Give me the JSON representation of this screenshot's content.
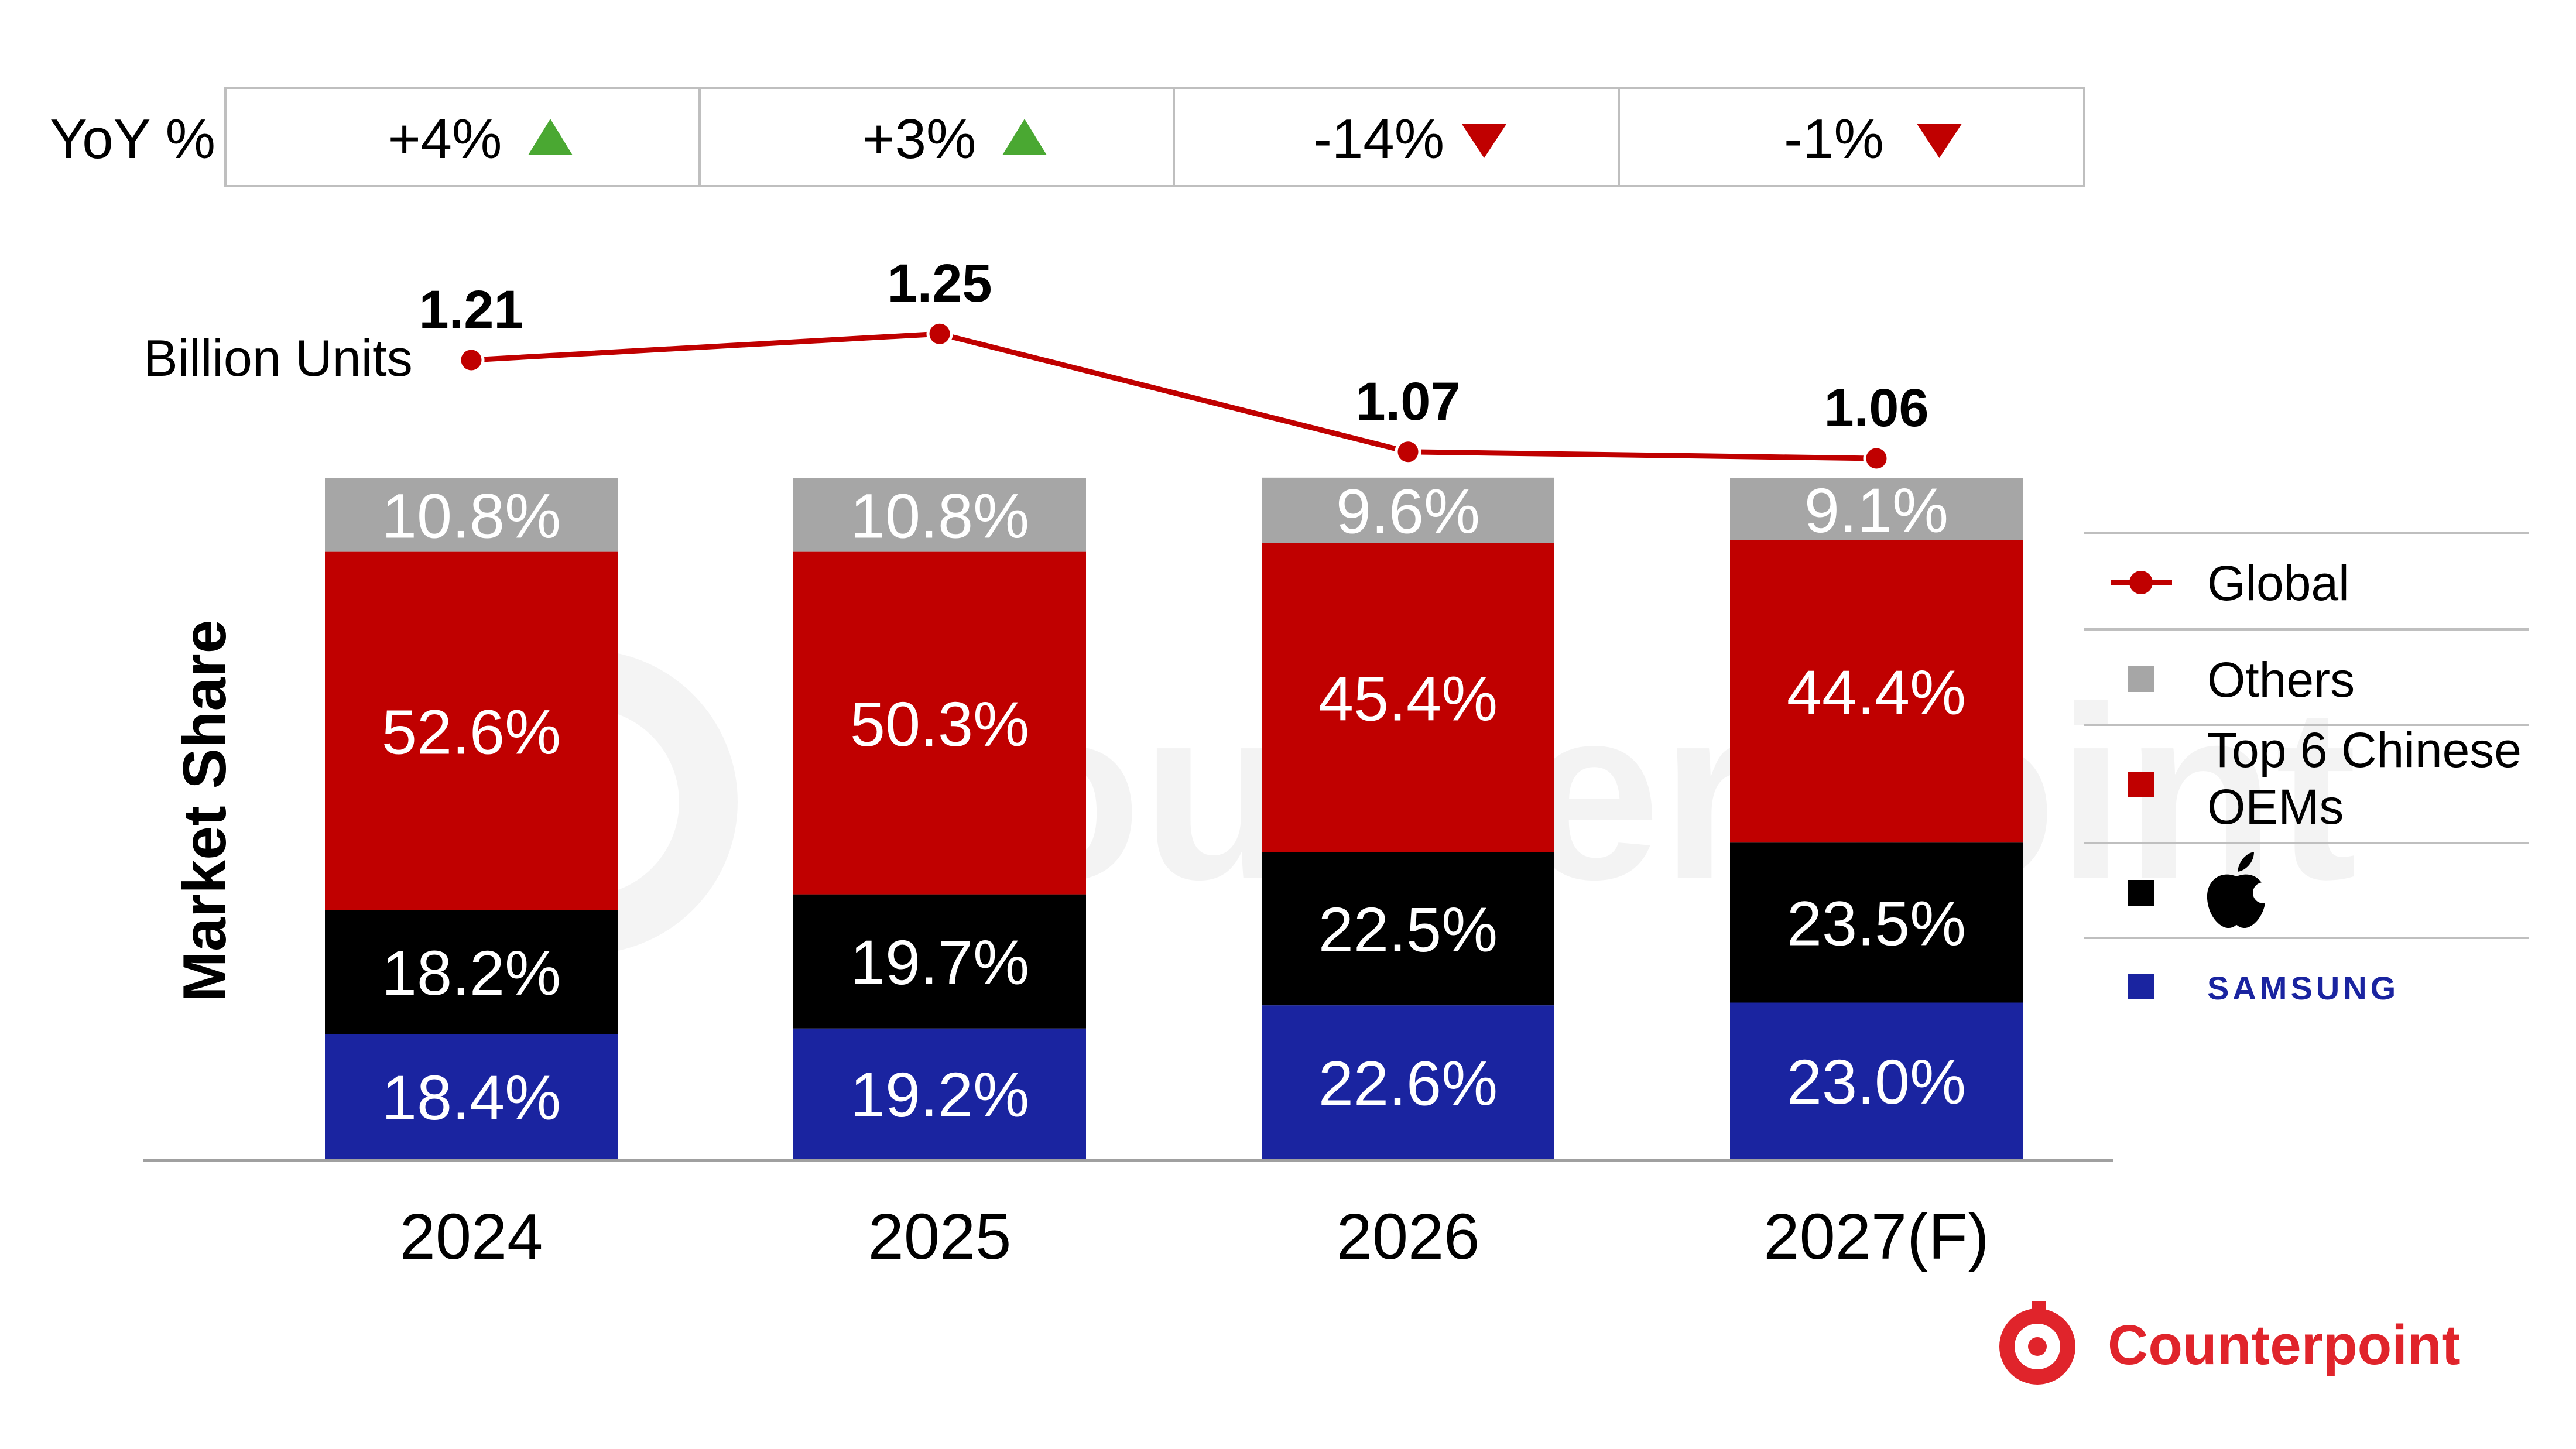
{
  "chart_data": {
    "type": "bar",
    "stacked": true,
    "categories": [
      "2024",
      "2025",
      "2026",
      "2027(F)"
    ],
    "ylabel": "Market Share",
    "ylim": [
      0,
      100
    ],
    "series": [
      {
        "name": "SAMSUNG",
        "color": "#1a24a0",
        "values": [
          18.4,
          19.2,
          22.6,
          23.0
        ],
        "labels": [
          "18.4%",
          "19.2%",
          "22.6%",
          "23.0%"
        ]
      },
      {
        "name": "",
        "legend_icon": "apple-logo-icon",
        "color": "#000000",
        "values": [
          18.2,
          19.7,
          22.5,
          23.5
        ],
        "labels": [
          "18.2%",
          "19.7%",
          "22.5%",
          "23.5%"
        ]
      },
      {
        "name": "Top 6 Chinese OEMs",
        "color": "#c00000",
        "values": [
          52.6,
          50.3,
          45.4,
          44.4
        ],
        "labels": [
          "52.6%",
          "50.3%",
          "45.4%",
          "44.4%"
        ]
      },
      {
        "name": "Others",
        "color": "#a6a6a6",
        "values": [
          10.8,
          10.8,
          9.6,
          9.1
        ],
        "labels": [
          "10.8%",
          "10.8%",
          "9.6%",
          "9.1%"
        ]
      }
    ],
    "line": {
      "name": "Global",
      "label": "Billion Units",
      "color": "#c00000",
      "values": [
        1.21,
        1.25,
        1.07,
        1.06
      ],
      "labels": [
        "1.21",
        "1.25",
        "1.07",
        "1.06"
      ]
    },
    "yoy": {
      "label": "YoY %",
      "values": [
        "+4%",
        "+3%",
        "-14%",
        "-1%"
      ],
      "direction": [
        "up",
        "up",
        "down",
        "down"
      ],
      "up_color": "#4aa832",
      "down_color": "#c00000"
    },
    "legend": {
      "position": "right",
      "items": [
        {
          "label": "Global",
          "marker": "line-dot",
          "color": "#c00000"
        },
        {
          "label": "Others",
          "marker": "square",
          "color": "#a6a6a6"
        },
        {
          "label": "Top 6 Chinese\nOEMs",
          "marker": "square",
          "color": "#c00000"
        },
        {
          "label": "",
          "marker": "square",
          "color": "#000000",
          "icon": "apple-logo-icon"
        },
        {
          "label": "SAMSUNG",
          "marker": "square",
          "color": "#1a24a0",
          "styled": "wordmark"
        }
      ]
    },
    "grid": false
  },
  "branding": {
    "logo_text": "Counterpoint",
    "watermark_text": "Counterpoint",
    "brand_color": "#e0242b"
  }
}
